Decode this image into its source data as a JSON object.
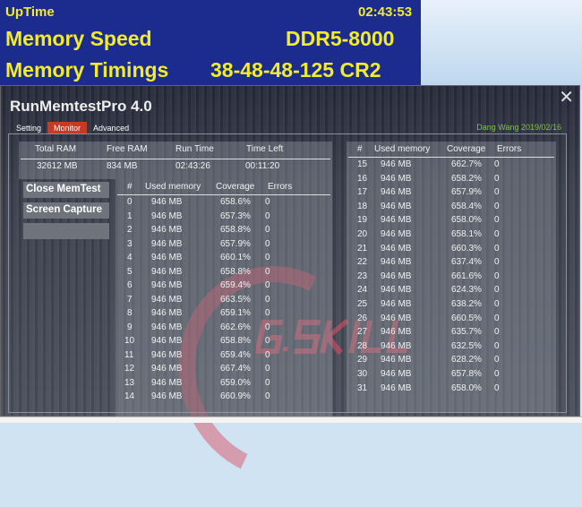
{
  "banner": {
    "uptime_label": "UpTime",
    "uptime_value": "02:43:53",
    "speed_label": "Memory Speed",
    "speed_value": "DDR5-8000",
    "timings_label": "Memory Timings",
    "timings_value": "38-48-48-125 CR2"
  },
  "app": {
    "title": "RunMemtestPro 4.0",
    "author": "Dang Wang 2019/02/16",
    "logo": "G.SKILL",
    "tabs": [
      {
        "label": "Setting"
      },
      {
        "label": "Monitor",
        "active": true
      },
      {
        "label": "Advanced"
      }
    ],
    "summary": {
      "headers": [
        "Total RAM",
        "Free RAM",
        "Run Time",
        "Time Left"
      ],
      "values": [
        "32612 MB",
        "834 MB",
        "02:43:26",
        "00:11:20"
      ]
    },
    "buttons": {
      "close": "Close MemTest",
      "capture": "Screen Capture"
    },
    "columns": [
      "#",
      "Used memory",
      "Coverage",
      "Errors"
    ],
    "rows": [
      [
        "0",
        "946 MB",
        "658.6%",
        "0"
      ],
      [
        "1",
        "946 MB",
        "657.3%",
        "0"
      ],
      [
        "2",
        "946 MB",
        "658.8%",
        "0"
      ],
      [
        "3",
        "946 MB",
        "657.9%",
        "0"
      ],
      [
        "4",
        "946 MB",
        "660.1%",
        "0"
      ],
      [
        "5",
        "946 MB",
        "658.8%",
        "0"
      ],
      [
        "6",
        "946 MB",
        "659.4%",
        "0"
      ],
      [
        "7",
        "946 MB",
        "663.5%",
        "0"
      ],
      [
        "8",
        "946 MB",
        "659.1%",
        "0"
      ],
      [
        "9",
        "946 MB",
        "662.6%",
        "0"
      ],
      [
        "10",
        "946 MB",
        "658.8%",
        "0"
      ],
      [
        "11",
        "946 MB",
        "659.4%",
        "0"
      ],
      [
        "12",
        "946 MB",
        "667.4%",
        "0"
      ],
      [
        "13",
        "946 MB",
        "659.0%",
        "0"
      ],
      [
        "14",
        "946 MB",
        "660.9%",
        "0"
      ],
      [
        "15",
        "946 MB",
        "662.7%",
        "0"
      ],
      [
        "16",
        "946 MB",
        "658.2%",
        "0"
      ],
      [
        "17",
        "946 MB",
        "657.9%",
        "0"
      ],
      [
        "18",
        "946 MB",
        "658.4%",
        "0"
      ],
      [
        "19",
        "946 MB",
        "658.0%",
        "0"
      ],
      [
        "20",
        "946 MB",
        "658.1%",
        "0"
      ],
      [
        "21",
        "946 MB",
        "660.3%",
        "0"
      ],
      [
        "22",
        "946 MB",
        "637.4%",
        "0"
      ],
      [
        "23",
        "946 MB",
        "661.6%",
        "0"
      ],
      [
        "24",
        "946 MB",
        "624.3%",
        "0"
      ],
      [
        "25",
        "946 MB",
        "638.2%",
        "0"
      ],
      [
        "26",
        "946 MB",
        "660.5%",
        "0"
      ],
      [
        "27",
        "946 MB",
        "635.7%",
        "0"
      ],
      [
        "28",
        "946 MB",
        "632.5%",
        "0"
      ],
      [
        "29",
        "946 MB",
        "628.2%",
        "0"
      ],
      [
        "30",
        "946 MB",
        "657.8%",
        "0"
      ],
      [
        "31",
        "946 MB",
        "658.0%",
        "0"
      ]
    ]
  },
  "colors": {
    "banner_bg": "#1c2c8e",
    "banner_text": "#f2ec2c",
    "active_tab": "#c93a22",
    "author": "#7cc63b"
  }
}
